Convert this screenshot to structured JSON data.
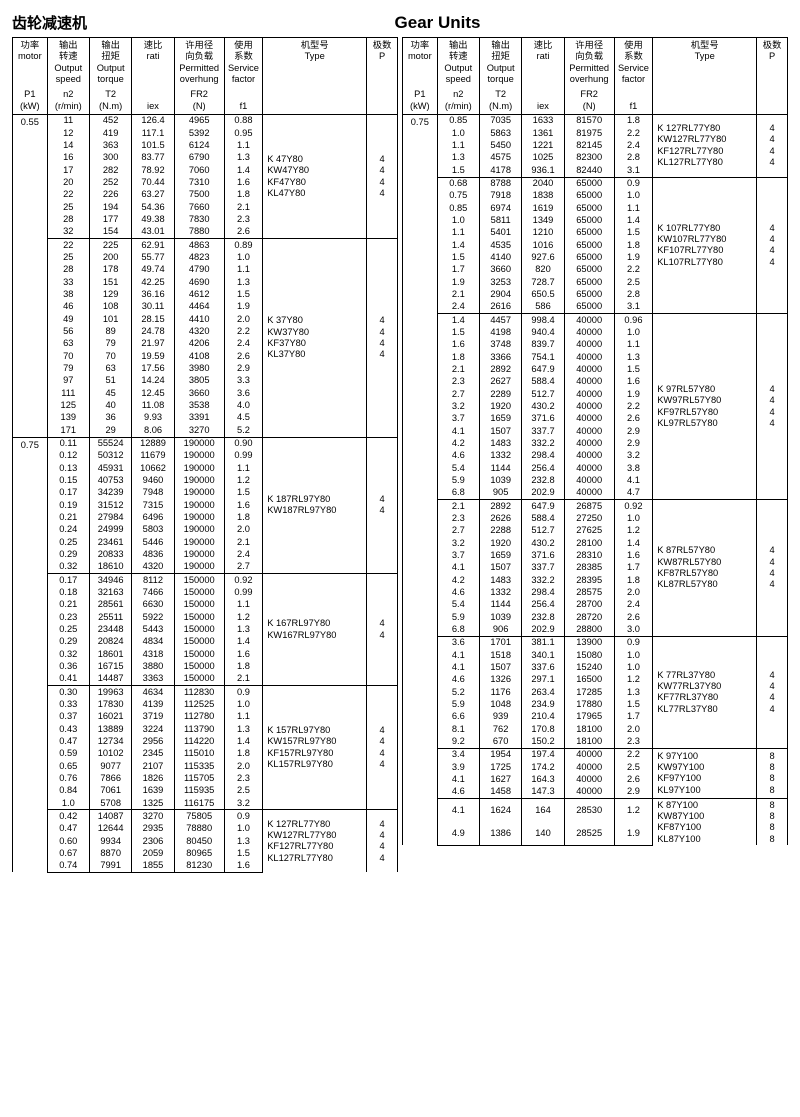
{
  "page": {
    "title_left": "齿轮减速机",
    "title_center": "Gear Units"
  },
  "headers": {
    "p1": {
      "top": "功率",
      "mid": "motor",
      "sub": "P1\n(kW)"
    },
    "n2": {
      "top": "输出\n转速",
      "mid": "Output\nspeed",
      "sub": "n2\n(r/min)"
    },
    "t2": {
      "top": "输出\n扭矩",
      "mid": "Output\ntorque",
      "sub": "T2\n(N.m)"
    },
    "iex": {
      "top": "速比",
      "mid": "rati",
      "sub": "iex"
    },
    "fr2": {
      "top": "许用径\n向负载",
      "mid": "Permitted\noverhung",
      "sub": "FR2\n(N)"
    },
    "f1": {
      "top": "使用\n系数",
      "mid": "Service\nfactor",
      "sub": "f1"
    },
    "type": {
      "top": "机型号",
      "mid": "Type",
      "sub": ""
    },
    "p": {
      "top": "极数",
      "mid": "P",
      "sub": ""
    }
  },
  "left": [
    {
      "p1": "0.55",
      "types": [
        {
          "t": "K 47Y80",
          "p": "4"
        },
        {
          "t": "KW47Y80",
          "p": "4"
        },
        {
          "t": "KF47Y80",
          "p": "4"
        },
        {
          "t": "KL47Y80",
          "p": "4"
        }
      ],
      "rows": [
        [
          "11",
          "452",
          "126.4",
          "4965",
          "0.88"
        ],
        [
          "12",
          "419",
          "117.1",
          "5392",
          "0.95"
        ],
        [
          "14",
          "363",
          "101.5",
          "6124",
          "1.1"
        ],
        [
          "16",
          "300",
          "83.77",
          "6790",
          "1.3"
        ],
        [
          "17",
          "282",
          "78.92",
          "7060",
          "1.4"
        ],
        [
          "20",
          "252",
          "70.44",
          "7310",
          "1.6"
        ],
        [
          "22",
          "226",
          "63.27",
          "7500",
          "1.8"
        ],
        [
          "25",
          "194",
          "54.36",
          "7660",
          "2.1"
        ],
        [
          "28",
          "177",
          "49.38",
          "7830",
          "2.3"
        ],
        [
          "32",
          "154",
          "43.01",
          "7880",
          "2.6"
        ]
      ]
    },
    {
      "p1": "",
      "types": [
        {
          "t": "K 37Y80",
          "p": "4"
        },
        {
          "t": "KW37Y80",
          "p": "4"
        },
        {
          "t": "KF37Y80",
          "p": "4"
        },
        {
          "t": "KL37Y80",
          "p": "4"
        }
      ],
      "rows": [
        [
          "22",
          "225",
          "62.91",
          "4863",
          "0.89"
        ],
        [
          "25",
          "200",
          "55.77",
          "4823",
          "1.0"
        ],
        [
          "28",
          "178",
          "49.74",
          "4790",
          "1.1"
        ],
        [
          "33",
          "151",
          "42.25",
          "4690",
          "1.3"
        ],
        [
          "38",
          "129",
          "36.16",
          "4612",
          "1.5"
        ],
        [
          "46",
          "108",
          "30.11",
          "4464",
          "1.9"
        ],
        [
          "49",
          "101",
          "28.15",
          "4410",
          "2.0"
        ],
        [
          "56",
          "89",
          "24.78",
          "4320",
          "2.2"
        ],
        [
          "63",
          "79",
          "21.97",
          "4206",
          "2.4"
        ],
        [
          "70",
          "70",
          "19.59",
          "4108",
          "2.6"
        ],
        [
          "79",
          "63",
          "17.56",
          "3980",
          "2.9"
        ],
        [
          "97",
          "51",
          "14.24",
          "3805",
          "3.3"
        ],
        [
          "111",
          "45",
          "12.45",
          "3660",
          "3.6"
        ],
        [
          "125",
          "40",
          "11.08",
          "3538",
          "4.0"
        ],
        [
          "139",
          "36",
          "9.93",
          "3391",
          "4.5"
        ],
        [
          "171",
          "29",
          "8.06",
          "3270",
          "5.2"
        ]
      ]
    },
    {
      "p1": "0.75",
      "types": [
        {
          "t": "K 187RL97Y80",
          "p": "4"
        },
        {
          "t": "KW187RL97Y80",
          "p": "4"
        }
      ],
      "rows": [
        [
          "0.11",
          "55524",
          "12889",
          "190000",
          "0.90"
        ],
        [
          "0.12",
          "50312",
          "11679",
          "190000",
          "0.99"
        ],
        [
          "0.13",
          "45931",
          "10662",
          "190000",
          "1.1"
        ],
        [
          "0.15",
          "40753",
          "9460",
          "190000",
          "1.2"
        ],
        [
          "0.17",
          "34239",
          "7948",
          "190000",
          "1.5"
        ],
        [
          "0.19",
          "31512",
          "7315",
          "190000",
          "1.6"
        ],
        [
          "0.21",
          "27984",
          "6496",
          "190000",
          "1.8"
        ],
        [
          "0.24",
          "24999",
          "5803",
          "190000",
          "2.0"
        ],
        [
          "0.25",
          "23461",
          "5446",
          "190000",
          "2.1"
        ],
        [
          "0.29",
          "20833",
          "4836",
          "190000",
          "2.4"
        ],
        [
          "0.32",
          "18610",
          "4320",
          "190000",
          "2.7"
        ]
      ]
    },
    {
      "p1": "",
      "types": [
        {
          "t": "K 167RL97Y80",
          "p": "4"
        },
        {
          "t": "KW167RL97Y80",
          "p": "4"
        }
      ],
      "rows": [
        [
          "0.17",
          "34946",
          "8112",
          "150000",
          "0.92"
        ],
        [
          "0.18",
          "32163",
          "7466",
          "150000",
          "0.99"
        ],
        [
          "0.21",
          "28561",
          "6630",
          "150000",
          "1.1"
        ],
        [
          "0.23",
          "25511",
          "5922",
          "150000",
          "1.2"
        ],
        [
          "0.25",
          "23448",
          "5443",
          "150000",
          "1.3"
        ],
        [
          "0.29",
          "20824",
          "4834",
          "150000",
          "1.4"
        ],
        [
          "0.32",
          "18601",
          "4318",
          "150000",
          "1.6"
        ],
        [
          "0.36",
          "16715",
          "3880",
          "150000",
          "1.8"
        ],
        [
          "0.41",
          "14487",
          "3363",
          "150000",
          "2.1"
        ]
      ]
    },
    {
      "p1": "",
      "types": [
        {
          "t": "K 157RL97Y80",
          "p": "4"
        },
        {
          "t": "KW157RL97Y80",
          "p": "4"
        },
        {
          "t": "KF157RL97Y80",
          "p": "4"
        },
        {
          "t": "KL157RL97Y80",
          "p": "4"
        }
      ],
      "rows": [
        [
          "0.30",
          "19963",
          "4634",
          "112830",
          "0.9"
        ],
        [
          "0.33",
          "17830",
          "4139",
          "112525",
          "1.0"
        ],
        [
          "0.37",
          "16021",
          "3719",
          "112780",
          "1.1"
        ],
        [
          "0.43",
          "13889",
          "3224",
          "113790",
          "1.3"
        ],
        [
          "0.47",
          "12734",
          "2956",
          "114220",
          "1.4"
        ],
        [
          "0.59",
          "10102",
          "2345",
          "115010",
          "1.8"
        ],
        [
          "0.65",
          "9077",
          "2107",
          "115335",
          "2.0"
        ],
        [
          "0.76",
          "7866",
          "1826",
          "115705",
          "2.3"
        ],
        [
          "0.84",
          "7061",
          "1639",
          "115935",
          "2.5"
        ],
        [
          "1.0",
          "5708",
          "1325",
          "116175",
          "3.2"
        ]
      ]
    },
    {
      "p1": "",
      "types": [
        {
          "t": "K 127RL77Y80",
          "p": "4"
        },
        {
          "t": "KW127RL77Y80",
          "p": "4"
        },
        {
          "t": "KF127RL77Y80",
          "p": "4"
        },
        {
          "t": "KL127RL77Y80",
          "p": "4"
        }
      ],
      "rows": [
        [
          "0.42",
          "14087",
          "3270",
          "75805",
          "0.9"
        ],
        [
          "0.47",
          "12644",
          "2935",
          "78880",
          "1.0"
        ],
        [
          "0.60",
          "9934",
          "2306",
          "80450",
          "1.3"
        ],
        [
          "0.67",
          "8870",
          "2059",
          "80965",
          "1.5"
        ],
        [
          "0.74",
          "7991",
          "1855",
          "81230",
          "1.6"
        ]
      ]
    }
  ],
  "right": [
    {
      "p1": "0.75",
      "types": [
        {
          "t": "K 127RL77Y80",
          "p": "4"
        },
        {
          "t": "KW127RL77Y80",
          "p": "4"
        },
        {
          "t": "KF127RL77Y80",
          "p": "4"
        },
        {
          "t": "KL127RL77Y80",
          "p": "4"
        }
      ],
      "rows": [
        [
          "0.85",
          "7035",
          "1633",
          "81570",
          "1.8"
        ],
        [
          "1.0",
          "5863",
          "1361",
          "81975",
          "2.2"
        ],
        [
          "1.1",
          "5450",
          "1221",
          "82145",
          "2.4"
        ],
        [
          "1.3",
          "4575",
          "1025",
          "82300",
          "2.8"
        ],
        [
          "1.5",
          "4178",
          "936.1",
          "82440",
          "3.1"
        ]
      ]
    },
    {
      "p1": "",
      "types": [
        {
          "t": "K 107RL77Y80",
          "p": "4"
        },
        {
          "t": "KW107RL77Y80",
          "p": "4"
        },
        {
          "t": "KF107RL77Y80",
          "p": "4"
        },
        {
          "t": "KL107RL77Y80",
          "p": "4"
        }
      ],
      "rows": [
        [
          "0.68",
          "8788",
          "2040",
          "65000",
          "0.9"
        ],
        [
          "0.75",
          "7918",
          "1838",
          "65000",
          "1.0"
        ],
        [
          "0.85",
          "6974",
          "1619",
          "65000",
          "1.1"
        ],
        [
          "1.0",
          "5811",
          "1349",
          "65000",
          "1.4"
        ],
        [
          "1.1",
          "5401",
          "1210",
          "65000",
          "1.5"
        ],
        [
          "1.4",
          "4535",
          "1016",
          "65000",
          "1.8"
        ],
        [
          "1.5",
          "4140",
          "927.6",
          "65000",
          "1.9"
        ],
        [
          "1.7",
          "3660",
          "820",
          "65000",
          "2.2"
        ],
        [
          "1.9",
          "3253",
          "728.7",
          "65000",
          "2.5"
        ],
        [
          "2.1",
          "2904",
          "650.5",
          "65000",
          "2.8"
        ],
        [
          "2.4",
          "2616",
          "586",
          "65000",
          "3.1"
        ]
      ]
    },
    {
      "p1": "",
      "types": [
        {
          "t": "K 97RL57Y80",
          "p": "4"
        },
        {
          "t": "KW97RL57Y80",
          "p": "4"
        },
        {
          "t": "KF97RL57Y80",
          "p": "4"
        },
        {
          "t": "KL97RL57Y80",
          "p": "4"
        }
      ],
      "rows": [
        [
          "1.4",
          "4457",
          "998.4",
          "40000",
          "0.96"
        ],
        [
          "1.5",
          "4198",
          "940.4",
          "40000",
          "1.0"
        ],
        [
          "1.6",
          "3748",
          "839.7",
          "40000",
          "1.1"
        ],
        [
          "1.8",
          "3366",
          "754.1",
          "40000",
          "1.3"
        ],
        [
          "2.1",
          "2892",
          "647.9",
          "40000",
          "1.5"
        ],
        [
          "2.3",
          "2627",
          "588.4",
          "40000",
          "1.6"
        ],
        [
          "2.7",
          "2289",
          "512.7",
          "40000",
          "1.9"
        ],
        [
          "3.2",
          "1920",
          "430.2",
          "40000",
          "2.2"
        ],
        [
          "3.7",
          "1659",
          "371.6",
          "40000",
          "2.6"
        ],
        [
          "4.1",
          "1507",
          "337.7",
          "40000",
          "2.9"
        ],
        [
          "4.2",
          "1483",
          "332.2",
          "40000",
          "2.9"
        ],
        [
          "4.6",
          "1332",
          "298.4",
          "40000",
          "3.2"
        ],
        [
          "5.4",
          "1144",
          "256.4",
          "40000",
          "3.8"
        ],
        [
          "5.9",
          "1039",
          "232.8",
          "40000",
          "4.1"
        ],
        [
          "6.8",
          "905",
          "202.9",
          "40000",
          "4.7"
        ]
      ]
    },
    {
      "p1": "",
      "types": [
        {
          "t": "K 87RL57Y80",
          "p": "4"
        },
        {
          "t": "KW87RL57Y80",
          "p": "4"
        },
        {
          "t": "KF87RL57Y80",
          "p": "4"
        },
        {
          "t": "KL87RL57Y80",
          "p": "4"
        }
      ],
      "rows": [
        [
          "2.1",
          "2892",
          "647.9",
          "26875",
          "0.92"
        ],
        [
          "2.3",
          "2626",
          "588.4",
          "27250",
          "1.0"
        ],
        [
          "2.7",
          "2288",
          "512.7",
          "27625",
          "1.2"
        ],
        [
          "3.2",
          "1920",
          "430.2",
          "28100",
          "1.4"
        ],
        [
          "3.7",
          "1659",
          "371.6",
          "28310",
          "1.6"
        ],
        [
          "4.1",
          "1507",
          "337.7",
          "28385",
          "1.7"
        ],
        [
          "4.2",
          "1483",
          "332.2",
          "28395",
          "1.8"
        ],
        [
          "4.6",
          "1332",
          "298.4",
          "28575",
          "2.0"
        ],
        [
          "5.4",
          "1144",
          "256.4",
          "28700",
          "2.4"
        ],
        [
          "5.9",
          "1039",
          "232.8",
          "28720",
          "2.6"
        ],
        [
          "6.8",
          "906",
          "202.9",
          "28800",
          "3.0"
        ]
      ]
    },
    {
      "p1": "",
      "types": [
        {
          "t": "K 77RL37Y80",
          "p": "4"
        },
        {
          "t": "KW77RL37Y80",
          "p": "4"
        },
        {
          "t": "KF77RL37Y80",
          "p": "4"
        },
        {
          "t": "KL77RL37Y80",
          "p": "4"
        }
      ],
      "rows": [
        [
          "3.6",
          "1701",
          "381.1",
          "13900",
          "0.9"
        ],
        [
          "4.1",
          "1518",
          "340.1",
          "15080",
          "1.0"
        ],
        [
          "4.1",
          "1507",
          "337.6",
          "15240",
          "1.0"
        ],
        [
          "4.6",
          "1326",
          "297.1",
          "16500",
          "1.2"
        ],
        [
          "5.2",
          "1176",
          "263.4",
          "17285",
          "1.3"
        ],
        [
          "5.9",
          "1048",
          "234.9",
          "17880",
          "1.5"
        ],
        [
          "6.6",
          "939",
          "210.4",
          "17965",
          "1.7"
        ],
        [
          "8.1",
          "762",
          "170.8",
          "18100",
          "2.0"
        ],
        [
          "9.2",
          "670",
          "150.2",
          "18100",
          "2.3"
        ]
      ]
    },
    {
      "p1": "",
      "types": [
        {
          "t": "K 97Y100",
          "p": "8"
        },
        {
          "t": "KW97Y100",
          "p": "8"
        },
        {
          "t": "KF97Y100",
          "p": "8"
        },
        {
          "t": "KL97Y100",
          "p": "8"
        }
      ],
      "rows": [
        [
          "3.4",
          "1954",
          "197.4",
          "40000",
          "2.2"
        ],
        [
          "3.9",
          "1725",
          "174.2",
          "40000",
          "2.5"
        ],
        [
          "4.1",
          "1627",
          "164.3",
          "40000",
          "2.6"
        ],
        [
          "4.6",
          "1458",
          "147.3",
          "40000",
          "2.9"
        ]
      ]
    },
    {
      "p1": "",
      "types": [
        {
          "t": "K 87Y100",
          "p": "8"
        },
        {
          "t": "KW87Y100",
          "p": "8"
        },
        {
          "t": "KF87Y100",
          "p": "8"
        },
        {
          "t": "KL87Y100",
          "p": "8"
        }
      ],
      "rows": [
        [
          "4.1",
          "1624",
          "164",
          "28530",
          "1.2"
        ],
        [
          "4.9",
          "1386",
          "140",
          "28525",
          "1.9"
        ]
      ]
    }
  ],
  "styling": {
    "font_family": "Arial",
    "base_font_size_pt": 7,
    "title_font_size_pt": 12,
    "border_color": "#000000",
    "background_color": "#ffffff",
    "text_color": "#000000",
    "col_widths_pct": {
      "p1": 9,
      "n2": 11,
      "t2": 11,
      "iex": 11,
      "fr2": 13,
      "f1": 10,
      "type": 27,
      "p": 8
    }
  }
}
